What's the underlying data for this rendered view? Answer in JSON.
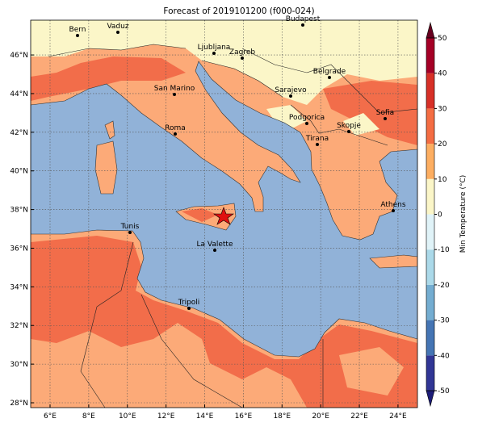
{
  "title": "Forecast of 2019101200 (f000-024)",
  "map": {
    "lon_ticks": [
      {
        "value": 6,
        "label": "6°E"
      },
      {
        "value": 8,
        "label": "8°E"
      },
      {
        "value": 10,
        "label": "10°E"
      },
      {
        "value": 12,
        "label": "12°E"
      },
      {
        "value": 14,
        "label": "14°E"
      },
      {
        "value": 16,
        "label": "16°E"
      },
      {
        "value": 18,
        "label": "18°E"
      },
      {
        "value": 20,
        "label": "20°E"
      },
      {
        "value": 22,
        "label": "22°E"
      },
      {
        "value": 24,
        "label": "24°E"
      }
    ],
    "lat_ticks": [
      {
        "value": 28,
        "label": "28°N"
      },
      {
        "value": 30,
        "label": "30°N"
      },
      {
        "value": 32,
        "label": "32°N"
      },
      {
        "value": 34,
        "label": "34°N"
      },
      {
        "value": 36,
        "label": "36°N"
      },
      {
        "value": 38,
        "label": "38°N"
      },
      {
        "value": 40,
        "label": "40°N"
      },
      {
        "value": 42,
        "label": "42°N"
      },
      {
        "value": 44,
        "label": "44°N"
      },
      {
        "value": 46,
        "label": "46°N"
      }
    ],
    "grid": true,
    "cities": [
      "Bern",
      "Vaduz",
      "Ljubljana",
      "Zagreb",
      "Budapest",
      "San Marino",
      "Sarajevo",
      "Belgrade",
      "Podgorica",
      "Skopje",
      "Sofia",
      "Roma",
      "Tirana",
      "Athens",
      "Tunis",
      "La Valette",
      "Tripoli"
    ]
  },
  "colorbar": {
    "label": "Min Temperature (°C)",
    "ticks": [
      -50,
      -40,
      -30,
      -20,
      -10,
      0,
      10,
      20,
      30,
      40,
      50
    ],
    "colors": [
      "#313695",
      "#4575b4",
      "#74add1",
      "#abd9e9",
      "#e0f3f8",
      "#fbf6c8",
      "#fdae61",
      "#f46d43",
      "#d73027",
      "#a50026"
    ],
    "under_color": "#1c1c78",
    "over_color": "#67001f"
  }
}
